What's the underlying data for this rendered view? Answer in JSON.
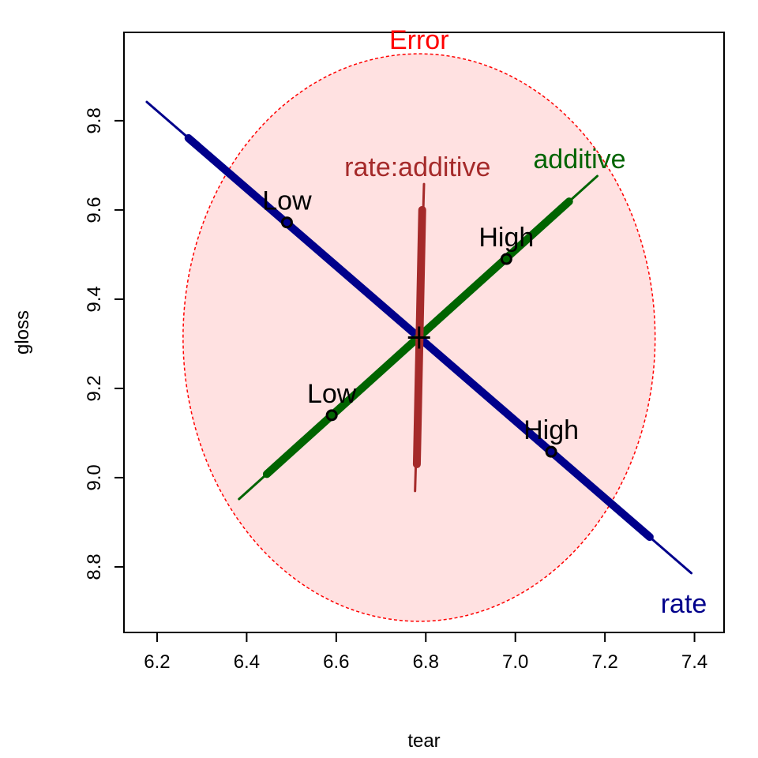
{
  "chart_data": {
    "type": "line",
    "xlabel": "tear",
    "ylabel": "gloss",
    "xlim": [
      6.126,
      7.466
    ],
    "ylim": [
      8.653,
      9.998
    ],
    "xticks": [
      6.2,
      6.4,
      6.6,
      6.8,
      7.0,
      7.2,
      7.4
    ],
    "yticks": [
      8.8,
      9.0,
      9.2,
      9.4,
      9.6,
      9.8
    ],
    "x_tick_labels": [
      "6.2",
      "6.4",
      "6.6",
      "6.8",
      "7.0",
      "7.2",
      "7.4"
    ],
    "y_tick_labels": [
      "8.8",
      "9.0",
      "9.2",
      "9.4",
      "9.6",
      "9.8"
    ],
    "center": [
      6.785,
      9.314
    ],
    "error_ellipse": {
      "label": "Error",
      "center": [
        6.785,
        9.314
      ],
      "rx": 0.527,
      "ry": 0.636,
      "stroke": "#ff0000",
      "fill": "#ffe1e1"
    },
    "series": [
      {
        "name": "rate",
        "color": "#00008b",
        "x": [
          6.177,
          7.393
        ],
        "y": [
          9.842,
          8.786
        ],
        "thick_segment": {
          "x": [
            6.27,
            7.3
          ],
          "y": [
            9.761,
            8.867
          ]
        },
        "label_at": [
          7.395,
          8.722
        ],
        "points": [
          {
            "label": "Low",
            "x": 6.49,
            "y": 9.572
          },
          {
            "label": "High",
            "x": 7.08,
            "y": 9.058
          }
        ]
      },
      {
        "name": "additive",
        "color": "#006400",
        "x": [
          6.383,
          7.183
        ],
        "y": [
          8.952,
          9.676
        ],
        "thick_segment": {
          "x": [
            6.445,
            7.12
          ],
          "y": [
            9.008,
            9.619
          ]
        },
        "label_at": [
          7.04,
          9.69
        ],
        "points": [
          {
            "label": "Low",
            "x": 6.59,
            "y": 9.14
          },
          {
            "label": "High",
            "x": 6.98,
            "y": 9.49
          }
        ]
      },
      {
        "name": "rate:additive",
        "color": "#a52a2a",
        "x": [
          6.776,
          6.796
        ],
        "y": [
          8.97,
          9.658
        ],
        "thick_segment": {
          "x": [
            6.78,
            6.792
          ],
          "y": [
            9.03,
            9.6
          ]
        },
        "label_at": [
          6.785,
          9.665
        ],
        "points": []
      }
    ]
  }
}
